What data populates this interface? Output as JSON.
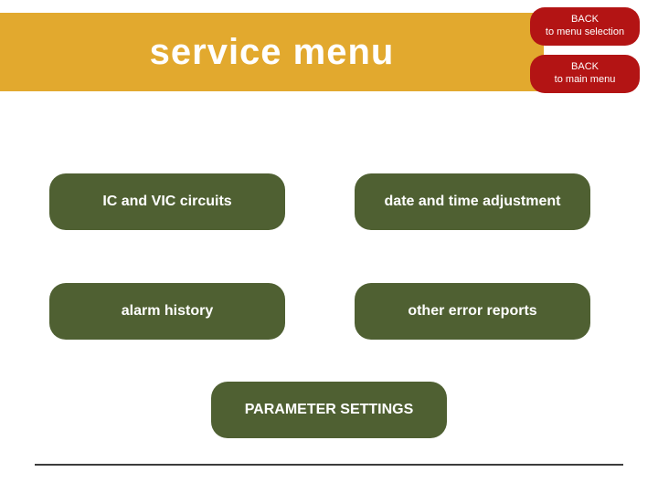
{
  "header": {
    "title": "service menu",
    "bar_color": "#e2a92e",
    "title_color": "#ffffff"
  },
  "back_buttons": {
    "first": {
      "line1": "BACK",
      "line2": "to  menu  selection"
    },
    "second": {
      "line1": "BACK",
      "line2": "to main menu"
    },
    "bg_color": "#b31414",
    "text_color": "#ffffff"
  },
  "menu": {
    "bg_color": "#4f6032",
    "text_color": "#ffffff",
    "items": {
      "tl": "IC and VIC circuits",
      "tr": "date and time adjustment",
      "bl": "alarm history",
      "br": "other error reports",
      "center": "PARAMETER SETTINGS"
    }
  },
  "page": {
    "bg_color": "#ffffff",
    "rule_color": "#3c3c3c"
  }
}
